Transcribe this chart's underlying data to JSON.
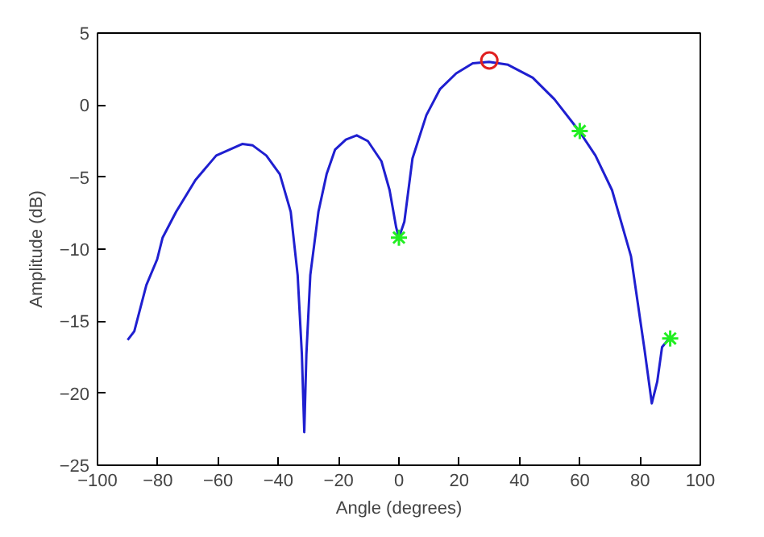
{
  "chart_data": {
    "type": "line",
    "xlabel": "Angle (degrees)",
    "ylabel": "Amplitude (dB)",
    "xlim": [
      -100,
      100
    ],
    "ylim": [
      -25,
      5
    ],
    "xticks": [
      -100,
      -80,
      -60,
      -40,
      -20,
      0,
      20,
      40,
      60,
      80,
      100
    ],
    "yticks": [
      -25,
      -20,
      -15,
      -10,
      -5,
      0,
      5
    ],
    "grid": false,
    "series": [
      {
        "color": "#1f1fd0",
        "marker": "none",
        "x": [
          -90,
          -87.8,
          -83.8,
          -80.2,
          -78.4,
          -73.9,
          -67.5,
          -60.6,
          -52,
          -48.5,
          -44,
          -39.5,
          -35.9,
          -33.6,
          -32.2,
          -31.4,
          -30.7,
          -29.4,
          -26.7,
          -24,
          -21.2,
          -17.6,
          -14,
          -10.3,
          -5.8,
          -3.1,
          -0.9,
          0,
          1.8,
          4.5,
          9.1,
          13.6,
          19,
          24.5,
          29.9,
          36.2,
          44.4,
          51.6,
          59.8,
          65.2,
          70.7,
          77,
          81.5,
          83.9,
          85.7,
          87.3,
          89.7
        ],
        "values": [
          -16.3,
          -15.7,
          -12.5,
          -10.7,
          -9.2,
          -7.4,
          -5.2,
          -3.5,
          -2.7,
          -2.8,
          -3.5,
          -4.8,
          -7.4,
          -11.8,
          -17.3,
          -22.7,
          -17.3,
          -11.8,
          -7.4,
          -4.8,
          -3.1,
          -2.4,
          -2.1,
          -2.5,
          -3.9,
          -5.9,
          -8.5,
          -9.2,
          -8.1,
          -3.7,
          -0.7,
          1.1,
          2.2,
          2.9,
          3.0,
          2.8,
          1.9,
          0.4,
          -1.8,
          -3.5,
          -5.9,
          -10.5,
          -17,
          -20.7,
          -19.2,
          -16.8,
          -16.2
        ]
      },
      {
        "type": "scatter",
        "color": "#22ee22",
        "marker": "cross",
        "x": [
          0,
          60,
          90
        ],
        "values": [
          -9.2,
          -1.8,
          -16.2
        ]
      },
      {
        "type": "scatter",
        "color": "#e02020",
        "marker": "circle",
        "x": [
          30
        ],
        "values": [
          3.1
        ]
      }
    ]
  }
}
